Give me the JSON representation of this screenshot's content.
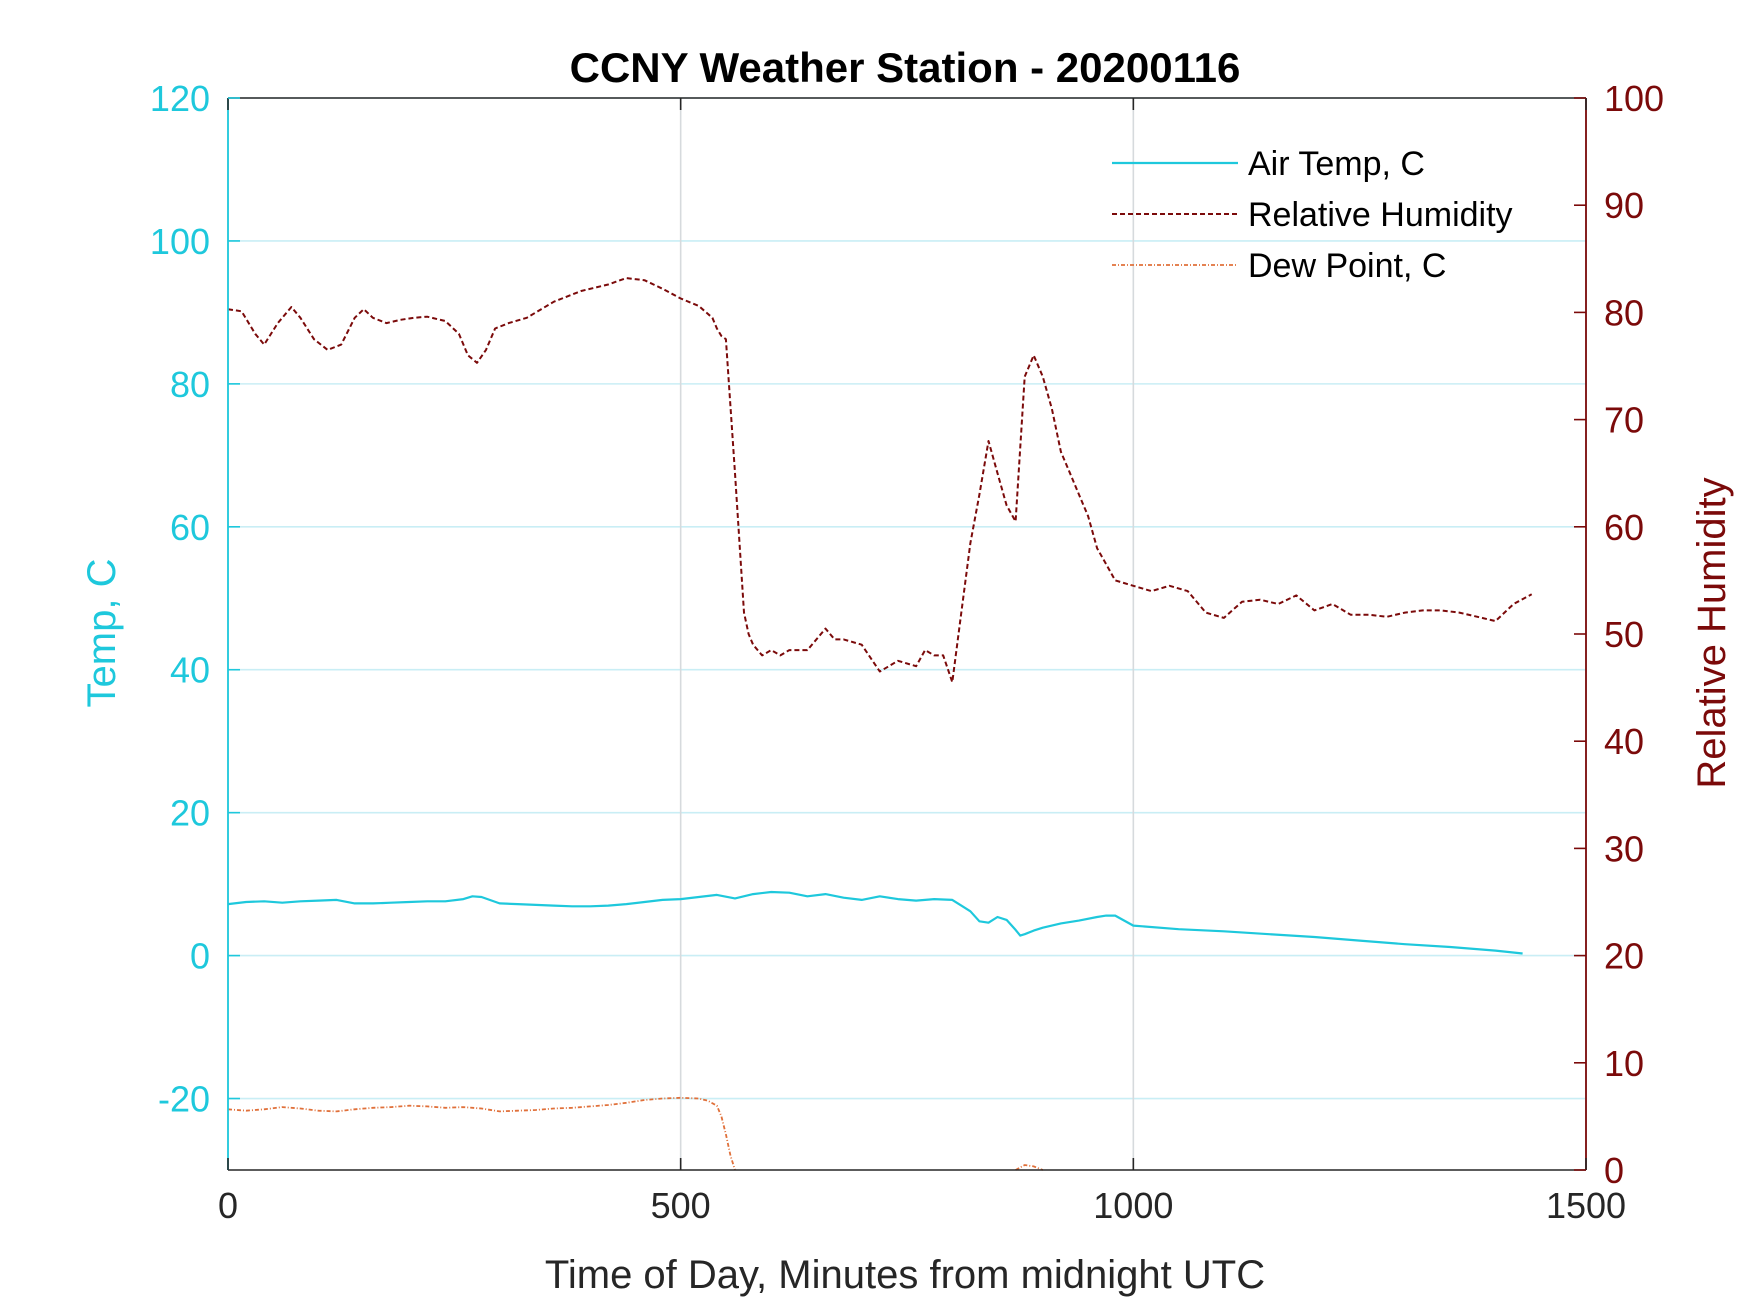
{
  "chart_data": {
    "type": "line",
    "title": "CCNY Weather Station - 20200116",
    "xlabel": "Time of Day, Minutes from midnight UTC",
    "ylabel_left": "Temp, C",
    "ylabel_right": "Relative Humidity",
    "xlim": [
      0,
      1500
    ],
    "ylim_left": [
      -30,
      120
    ],
    "ylim_right": [
      0,
      100
    ],
    "x_ticks": [
      0,
      500,
      1000,
      1500
    ],
    "y_ticks_left": [
      120,
      100,
      80,
      60,
      40,
      20,
      0,
      -20
    ],
    "y_ticks_right": [
      100,
      90,
      80,
      70,
      60,
      50,
      40,
      30,
      20,
      10,
      0
    ],
    "grid": true,
    "legend_position": "top-right",
    "colors": {
      "left_axis": "#1ec8dc",
      "right_axis": "#7b0a0a",
      "air_temp": "#1ec8dc",
      "humidity": "#7b0a0a",
      "dew_point": "#e0703a",
      "grid": "#c9eef5"
    },
    "series": [
      {
        "name": "Air Temp, C",
        "axis": "left",
        "style": "solid",
        "x": [
          0,
          20,
          40,
          60,
          80,
          100,
          120,
          140,
          160,
          180,
          200,
          220,
          240,
          260,
          270,
          280,
          300,
          320,
          340,
          360,
          380,
          400,
          420,
          440,
          460,
          480,
          500,
          520,
          540,
          560,
          580,
          600,
          620,
          640,
          660,
          680,
          700,
          720,
          740,
          760,
          780,
          800,
          810,
          820,
          830,
          840,
          850,
          860,
          870,
          875,
          880,
          890,
          900,
          920,
          940,
          960,
          970,
          980,
          1000,
          1050,
          1100,
          1150,
          1200,
          1250,
          1300,
          1350,
          1400,
          1430
        ],
        "y": [
          7.2,
          7.5,
          7.6,
          7.4,
          7.6,
          7.7,
          7.8,
          7.3,
          7.3,
          7.4,
          7.5,
          7.6,
          7.6,
          7.9,
          8.3,
          8.2,
          7.3,
          7.2,
          7.1,
          7.0,
          6.9,
          6.9,
          7.0,
          7.2,
          7.5,
          7.8,
          7.9,
          8.2,
          8.5,
          8.0,
          8.6,
          8.9,
          8.8,
          8.3,
          8.6,
          8.1,
          7.8,
          8.3,
          7.9,
          7.7,
          7.9,
          7.8,
          7.0,
          6.2,
          4.8,
          4.6,
          5.4,
          5.0,
          3.6,
          2.8,
          3.0,
          3.5,
          3.9,
          4.5,
          4.9,
          5.4,
          5.6,
          5.6,
          4.2,
          3.7,
          3.4,
          3.0,
          2.6,
          2.1,
          1.6,
          1.2,
          0.7,
          0.3
        ]
      },
      {
        "name": "Relative Humidity",
        "axis": "right",
        "style": "dashed",
        "x": [
          0,
          15,
          30,
          40,
          55,
          70,
          80,
          95,
          110,
          125,
          140,
          150,
          160,
          175,
          190,
          205,
          220,
          240,
          255,
          265,
          275,
          285,
          295,
          310,
          330,
          360,
          390,
          420,
          440,
          460,
          480,
          500,
          520,
          535,
          540,
          545,
          550,
          560,
          570,
          575,
          580,
          590,
          600,
          610,
          620,
          640,
          660,
          670,
          680,
          700,
          720,
          730,
          740,
          760,
          770,
          780,
          790,
          800,
          810,
          820,
          830,
          840,
          850,
          860,
          870,
          880,
          890,
          900,
          910,
          920,
          930,
          940,
          950,
          960,
          970,
          980,
          1000,
          1020,
          1040,
          1060,
          1080,
          1100,
          1120,
          1140,
          1160,
          1180,
          1200,
          1220,
          1240,
          1260,
          1280,
          1300,
          1320,
          1340,
          1360,
          1380,
          1400,
          1420,
          1440
        ],
        "y": [
          80.3,
          80.1,
          78.0,
          77.0,
          79.0,
          80.5,
          79.5,
          77.5,
          76.5,
          77.0,
          79.5,
          80.3,
          79.5,
          79.0,
          79.3,
          79.5,
          79.6,
          79.2,
          78.0,
          76.0,
          75.3,
          76.5,
          78.5,
          79.0,
          79.5,
          81.0,
          82.0,
          82.6,
          83.2,
          83.0,
          82.2,
          81.3,
          80.6,
          79.5,
          78.5,
          77.8,
          77.5,
          65.0,
          52.0,
          50.0,
          49.0,
          48.0,
          48.5,
          48.0,
          48.5,
          48.5,
          50.5,
          49.5,
          49.5,
          49.0,
          46.5,
          47.0,
          47.5,
          47.0,
          48.5,
          48.0,
          48.0,
          45.5,
          52.0,
          58.5,
          63.0,
          68.0,
          65.0,
          62.0,
          60.5,
          74.0,
          76.0,
          74.0,
          71.0,
          67.0,
          65.0,
          63.0,
          61.0,
          58.0,
          56.5,
          55.0,
          54.5,
          54.0,
          54.5,
          54.0,
          52.0,
          51.5,
          53.0,
          53.2,
          52.8,
          53.6,
          52.2,
          52.8,
          51.8,
          51.8,
          51.6,
          52.0,
          52.2,
          52.2,
          52.0,
          51.6,
          51.2,
          52.8,
          53.7
        ]
      },
      {
        "name": "Dew Point, C",
        "axis": "left",
        "style": "dashdot",
        "x": [
          0,
          20,
          40,
          60,
          80,
          100,
          120,
          140,
          160,
          180,
          200,
          220,
          240,
          260,
          280,
          300,
          320,
          340,
          360,
          380,
          400,
          420,
          440,
          460,
          480,
          500,
          520,
          530,
          540,
          545,
          550,
          555,
          560
        ],
        "y": [
          -21.5,
          -21.7,
          -21.5,
          -21.2,
          -21.4,
          -21.7,
          -21.8,
          -21.5,
          -21.3,
          -21.2,
          -21.0,
          -21.1,
          -21.3,
          -21.2,
          -21.4,
          -21.8,
          -21.7,
          -21.6,
          -21.4,
          -21.3,
          -21.1,
          -20.9,
          -20.6,
          -20.2,
          -20.0,
          -19.9,
          -20.0,
          -20.3,
          -21.0,
          -22.5,
          -25.0,
          -28.0,
          -30.0
        ],
        "x2": [
          870,
          880,
          890,
          900
        ],
        "y2": [
          -30.0,
          -29.3,
          -29.5,
          -30.0
        ]
      }
    ]
  }
}
